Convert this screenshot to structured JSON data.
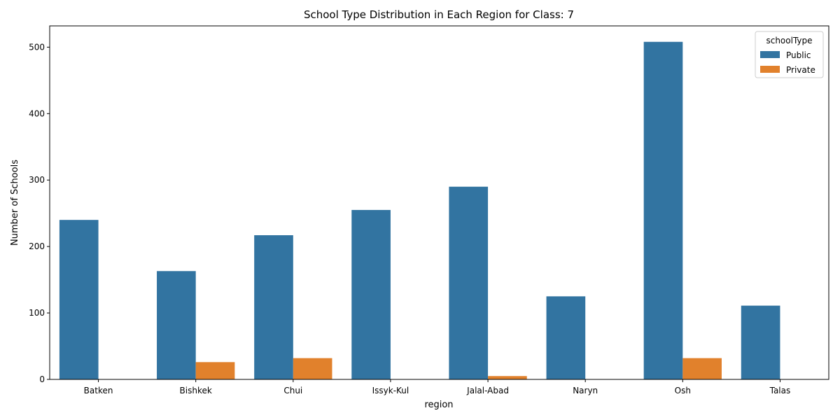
{
  "chart_data": {
    "type": "bar",
    "title": "School Type Distribution in Each Region for Class: 7",
    "xlabel": "region",
    "ylabel": "Number of Schools",
    "categories": [
      "Batken",
      "Bishkek",
      "Chui",
      "Issyk-Kul",
      "Jalal-Abad",
      "Naryn",
      "Osh",
      "Talas"
    ],
    "series": [
      {
        "name": "Public",
        "color": "#3274a1",
        "values": [
          240,
          163,
          217,
          255,
          290,
          125,
          508,
          111
        ]
      },
      {
        "name": "Private",
        "color": "#e1812c",
        "values": [
          0,
          26,
          32,
          0,
          5,
          0,
          32,
          0
        ]
      }
    ],
    "ylim": [
      0,
      532
    ],
    "yticks": [
      0,
      100,
      200,
      300,
      400,
      500
    ],
    "grid": false,
    "legend": {
      "title": "schoolType",
      "placement": "top-right"
    }
  }
}
